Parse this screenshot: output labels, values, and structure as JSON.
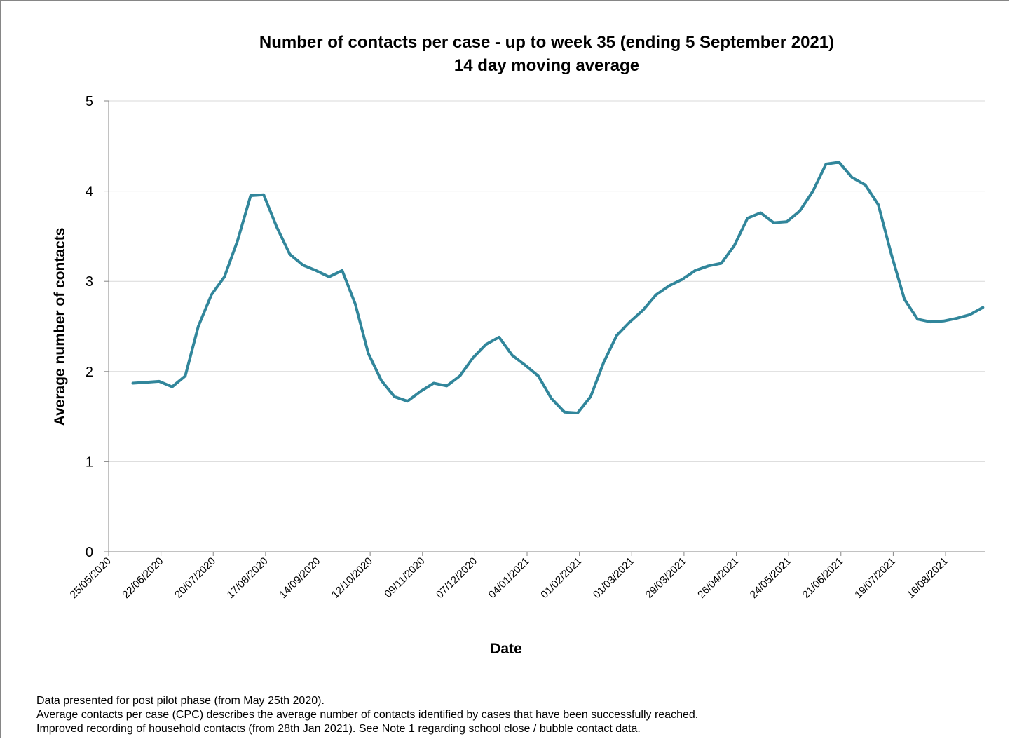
{
  "chart_data": {
    "type": "line",
    "title": "Number of contacts per case - up to week 35 (ending 5 September 2021)",
    "subtitle": "14 day moving average",
    "x_label": "Date",
    "y_label": "Average number of contacts",
    "notes": [
      "Data presented  for post pilot phase (from May 25th 2020).",
      "Average contacts per case (CPC) describes the average number of contacts identified by cases that have been successfully reached.",
      "Improved recording of household contacts (from 28th Jan 2021). See Note 1 regarding school close / bubble contact data."
    ],
    "x": [
      "2020-06-07",
      "2020-06-14",
      "2020-06-21",
      "2020-06-28",
      "2020-07-05",
      "2020-07-12",
      "2020-07-19",
      "2020-07-26",
      "2020-08-02",
      "2020-08-09",
      "2020-08-16",
      "2020-08-23",
      "2020-08-30",
      "2020-09-06",
      "2020-09-13",
      "2020-09-20",
      "2020-09-27",
      "2020-10-04",
      "2020-10-11",
      "2020-10-18",
      "2020-10-25",
      "2020-11-01",
      "2020-11-08",
      "2020-11-15",
      "2020-11-22",
      "2020-11-29",
      "2020-12-06",
      "2020-12-13",
      "2020-12-20",
      "2020-12-27",
      "2021-01-03",
      "2021-01-10",
      "2021-01-17",
      "2021-01-24",
      "2021-01-31",
      "2021-02-07",
      "2021-02-14",
      "2021-02-21",
      "2021-02-28",
      "2021-03-07",
      "2021-03-14",
      "2021-03-21",
      "2021-03-28",
      "2021-04-04",
      "2021-04-11",
      "2021-04-18",
      "2021-04-25",
      "2021-05-02",
      "2021-05-09",
      "2021-05-16",
      "2021-05-23",
      "2021-05-30",
      "2021-06-06",
      "2021-06-13",
      "2021-06-20",
      "2021-06-27",
      "2021-07-04",
      "2021-07-11",
      "2021-07-18",
      "2021-07-25",
      "2021-08-01",
      "2021-08-08",
      "2021-08-15",
      "2021-08-22",
      "2021-08-29",
      "2021-09-05"
    ],
    "series": [
      {
        "name": "Average number of contacts",
        "color": "#31869b",
        "values": [
          1.87,
          1.88,
          1.89,
          1.83,
          1.95,
          2.5,
          2.85,
          3.05,
          3.45,
          3.95,
          3.96,
          3.6,
          3.3,
          3.18,
          3.12,
          3.05,
          3.12,
          2.75,
          2.2,
          1.9,
          1.72,
          1.67,
          1.78,
          1.87,
          1.84,
          1.95,
          2.15,
          2.3,
          2.38,
          2.18,
          2.07,
          1.95,
          1.7,
          1.55,
          1.54,
          1.72,
          2.1,
          2.4,
          2.55,
          2.68,
          2.85,
          2.95,
          3.02,
          3.12,
          3.17,
          3.2,
          3.4,
          3.7,
          3.76,
          3.65,
          3.66,
          3.78,
          4.0,
          4.3,
          4.32,
          4.15,
          4.07,
          3.85,
          3.3,
          2.8,
          2.58,
          2.55,
          2.56,
          2.59,
          2.63,
          2.71
        ]
      }
    ],
    "xlim": [
      "2020-05-25",
      "2021-09-06"
    ],
    "xticks": [
      {
        "value": "2020-05-25",
        "label": "25/05/2020"
      },
      {
        "value": "2020-06-22",
        "label": "22/06/2020"
      },
      {
        "value": "2020-07-20",
        "label": "20/07/2020"
      },
      {
        "value": "2020-08-17",
        "label": "17/08/2020"
      },
      {
        "value": "2020-09-14",
        "label": "14/09/2020"
      },
      {
        "value": "2020-10-12",
        "label": "12/10/2020"
      },
      {
        "value": "2020-11-09",
        "label": "09/11/2020"
      },
      {
        "value": "2020-12-07",
        "label": "07/12/2020"
      },
      {
        "value": "2021-01-04",
        "label": "04/01/2021"
      },
      {
        "value": "2021-02-01",
        "label": "01/02/2021"
      },
      {
        "value": "2021-03-01",
        "label": "01/03/2021"
      },
      {
        "value": "2021-03-29",
        "label": "29/03/2021"
      },
      {
        "value": "2021-04-26",
        "label": "26/04/2021"
      },
      {
        "value": "2021-05-24",
        "label": "24/05/2021"
      },
      {
        "value": "2021-06-21",
        "label": "21/06/2021"
      },
      {
        "value": "2021-07-19",
        "label": "19/07/2021"
      },
      {
        "value": "2021-08-16",
        "label": "16/08/2021"
      }
    ],
    "ylim": [
      0,
      5
    ],
    "yticks": [
      0,
      1,
      2,
      3,
      4,
      5
    ],
    "grid": true
  }
}
